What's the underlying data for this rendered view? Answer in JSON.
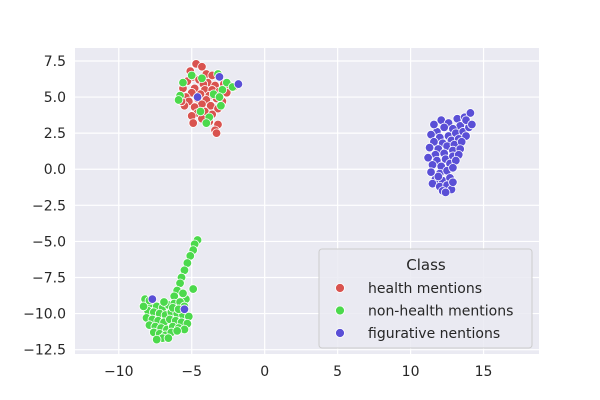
{
  "chart_data": {
    "type": "scatter",
    "title": "",
    "xlabel": "",
    "ylabel": "",
    "xlim": [
      -13,
      18.8
    ],
    "ylim": [
      -12.8,
      8.4
    ],
    "grid": true,
    "x_ticks": [
      -10,
      -5,
      0,
      5,
      10,
      15
    ],
    "x_tick_labels": [
      "−10",
      "−5",
      "0",
      "5",
      "10",
      "15"
    ],
    "y_ticks": [
      7.5,
      5.0,
      2.5,
      0.0,
      -2.5,
      -5.0,
      -7.5,
      -10.0,
      -12.5
    ],
    "y_tick_labels": [
      "7.5",
      "5.0",
      "2.5",
      "0.0",
      "−2.5",
      "−5.0",
      "−7.5",
      "−10.0",
      "−12.5"
    ],
    "legend": {
      "title": "Class",
      "placement": "lower-right",
      "entries": [
        {
          "label": "health mentions",
          "color": "#d9534f"
        },
        {
          "label": "non-health mentions",
          "color": "#4cd94c"
        },
        {
          "label": "figurative nentions",
          "color": "#5a4fd6"
        }
      ]
    },
    "series": [
      {
        "name": "health mentions",
        "color": "#d9534f",
        "points": [
          [
            -4.7,
            7.3
          ],
          [
            -4.3,
            7.1
          ],
          [
            -5.1,
            6.8
          ],
          [
            -4.0,
            6.6
          ],
          [
            -3.6,
            6.5
          ],
          [
            -4.9,
            6.4
          ],
          [
            -4.5,
            6.2
          ],
          [
            -5.3,
            6.1
          ],
          [
            -3.9,
            6.0
          ],
          [
            -4.2,
            5.9
          ],
          [
            -3.4,
            5.8
          ],
          [
            -2.8,
            5.9
          ],
          [
            -2.4,
            5.8
          ],
          [
            -2.1,
            5.7
          ],
          [
            -5.6,
            5.6
          ],
          [
            -4.8,
            5.6
          ],
          [
            -4.1,
            5.5
          ],
          [
            -3.6,
            5.5
          ],
          [
            -3.1,
            5.4
          ],
          [
            -2.6,
            5.3
          ],
          [
            -5.0,
            5.3
          ],
          [
            -4.4,
            5.2
          ],
          [
            -3.8,
            5.1
          ],
          [
            -5.4,
            5.0
          ],
          [
            -4.6,
            4.9
          ],
          [
            -4.0,
            4.8
          ],
          [
            -3.3,
            4.9
          ],
          [
            -2.9,
            4.7
          ],
          [
            -5.2,
            4.7
          ],
          [
            -4.3,
            4.5
          ],
          [
            -3.7,
            4.4
          ],
          [
            -4.8,
            4.3
          ],
          [
            -5.5,
            4.4
          ],
          [
            -3.2,
            4.2
          ],
          [
            -4.1,
            4.0
          ],
          [
            -4.6,
            3.9
          ],
          [
            -3.6,
            3.8
          ],
          [
            -5.0,
            3.7
          ],
          [
            -4.3,
            3.5
          ],
          [
            -3.8,
            3.3
          ],
          [
            -3.2,
            3.1
          ],
          [
            -3.4,
            2.7
          ],
          [
            -3.3,
            2.5
          ],
          [
            -4.9,
            3.2
          ],
          [
            -5.7,
            4.7
          ]
        ]
      },
      {
        "name": "non-health mentions",
        "color": "#4cd94c",
        "points": [
          [
            -5.6,
            6.0
          ],
          [
            -5.0,
            6.5
          ],
          [
            -4.3,
            6.3
          ],
          [
            -3.2,
            6.6
          ],
          [
            -2.6,
            6.0
          ],
          [
            -2.2,
            5.7
          ],
          [
            -5.8,
            5.1
          ],
          [
            -3.5,
            5.2
          ],
          [
            -2.9,
            5.5
          ],
          [
            -5.9,
            4.8
          ],
          [
            -3.1,
            5.0
          ],
          [
            -4.4,
            4.0
          ],
          [
            -3.8,
            3.6
          ],
          [
            -4.0,
            3.2
          ],
          [
            -3.0,
            4.4
          ],
          [
            -4.6,
            -4.9
          ],
          [
            -4.8,
            -5.2
          ],
          [
            -4.9,
            -5.6
          ],
          [
            -5.1,
            -6.0
          ],
          [
            -5.3,
            -6.5
          ],
          [
            -5.5,
            -7.0
          ],
          [
            -5.7,
            -7.5
          ],
          [
            -5.8,
            -7.9
          ],
          [
            -6.0,
            -8.4
          ],
          [
            -6.2,
            -8.8
          ],
          [
            -4.9,
            -8.3
          ],
          [
            -5.4,
            -9.0
          ],
          [
            -8.2,
            -9.0
          ],
          [
            -7.8,
            -9.3
          ],
          [
            -7.4,
            -9.5
          ],
          [
            -7.0,
            -9.6
          ],
          [
            -6.6,
            -9.4
          ],
          [
            -6.2,
            -9.3
          ],
          [
            -5.8,
            -9.2
          ],
          [
            -5.5,
            -9.5
          ],
          [
            -8.0,
            -9.8
          ],
          [
            -7.6,
            -9.9
          ],
          [
            -7.2,
            -10.0
          ],
          [
            -6.8,
            -10.1
          ],
          [
            -6.4,
            -9.9
          ],
          [
            -6.0,
            -10.0
          ],
          [
            -5.6,
            -10.1
          ],
          [
            -5.2,
            -10.2
          ],
          [
            -8.1,
            -10.3
          ],
          [
            -7.7,
            -10.4
          ],
          [
            -7.3,
            -10.5
          ],
          [
            -6.9,
            -10.6
          ],
          [
            -6.5,
            -10.4
          ],
          [
            -6.1,
            -10.5
          ],
          [
            -5.7,
            -10.6
          ],
          [
            -5.3,
            -10.7
          ],
          [
            -7.9,
            -10.8
          ],
          [
            -7.5,
            -10.9
          ],
          [
            -7.1,
            -11.0
          ],
          [
            -6.7,
            -11.1
          ],
          [
            -6.3,
            -10.9
          ],
          [
            -5.9,
            -11.0
          ],
          [
            -5.5,
            -11.1
          ],
          [
            -7.6,
            -11.3
          ],
          [
            -7.2,
            -11.4
          ],
          [
            -6.8,
            -11.5
          ],
          [
            -6.4,
            -11.3
          ],
          [
            -6.0,
            -11.2
          ],
          [
            -7.0,
            -11.7
          ],
          [
            -7.4,
            -11.8
          ],
          [
            -6.6,
            -11.7
          ],
          [
            -8.3,
            -9.5
          ],
          [
            -7.9,
            -9.1
          ],
          [
            -6.9,
            -9.2
          ],
          [
            -6.3,
            -9.6
          ],
          [
            -5.9,
            -9.7
          ],
          [
            -5.6,
            -8.6
          ]
        ]
      },
      {
        "name": "figurative nentions",
        "color": "#5a4fd6",
        "points": [
          [
            -3.1,
            6.4
          ],
          [
            -1.8,
            5.9
          ],
          [
            -4.6,
            5.0
          ],
          [
            -5.5,
            -9.7
          ],
          [
            -7.7,
            -9.0
          ],
          [
            12.1,
            3.4
          ],
          [
            12.6,
            3.2
          ],
          [
            13.2,
            3.5
          ],
          [
            13.7,
            3.6
          ],
          [
            14.1,
            3.9
          ],
          [
            13.9,
            3.2
          ],
          [
            13.4,
            3.0
          ],
          [
            12.9,
            2.8
          ],
          [
            12.3,
            2.9
          ],
          [
            11.8,
            2.6
          ],
          [
            11.4,
            2.4
          ],
          [
            12.0,
            2.2
          ],
          [
            12.6,
            2.3
          ],
          [
            13.1,
            2.5
          ],
          [
            13.6,
            2.6
          ],
          [
            14.0,
            2.9
          ],
          [
            11.6,
            1.9
          ],
          [
            12.2,
            1.8
          ],
          [
            12.8,
            2.0
          ],
          [
            13.3,
            2.1
          ],
          [
            13.8,
            2.3
          ],
          [
            11.3,
            1.5
          ],
          [
            11.9,
            1.4
          ],
          [
            12.5,
            1.6
          ],
          [
            13.0,
            1.7
          ],
          [
            13.5,
            1.9
          ],
          [
            11.7,
            1.0
          ],
          [
            12.3,
            1.1
          ],
          [
            12.9,
            1.3
          ],
          [
            13.4,
            1.4
          ],
          [
            11.2,
            0.8
          ],
          [
            11.8,
            0.6
          ],
          [
            12.4,
            0.7
          ],
          [
            12.9,
            0.9
          ],
          [
            13.3,
            1.0
          ],
          [
            11.5,
            0.3
          ],
          [
            12.1,
            0.2
          ],
          [
            12.7,
            0.4
          ],
          [
            13.1,
            0.6
          ],
          [
            11.4,
            -0.2
          ],
          [
            12.0,
            -0.3
          ],
          [
            12.5,
            -0.1
          ],
          [
            12.9,
            0.1
          ],
          [
            11.7,
            -0.7
          ],
          [
            12.2,
            -0.8
          ],
          [
            12.7,
            -0.6
          ],
          [
            11.5,
            -1.0
          ],
          [
            12.0,
            -1.2
          ],
          [
            12.5,
            -1.1
          ],
          [
            12.2,
            -1.5
          ],
          [
            12.8,
            -1.4
          ],
          [
            12.4,
            -1.6
          ],
          [
            12.9,
            -0.9
          ],
          [
            11.9,
            -0.5
          ],
          [
            13.8,
            3.4
          ],
          [
            14.2,
            3.1
          ],
          [
            11.6,
            3.1
          ]
        ]
      }
    ]
  }
}
